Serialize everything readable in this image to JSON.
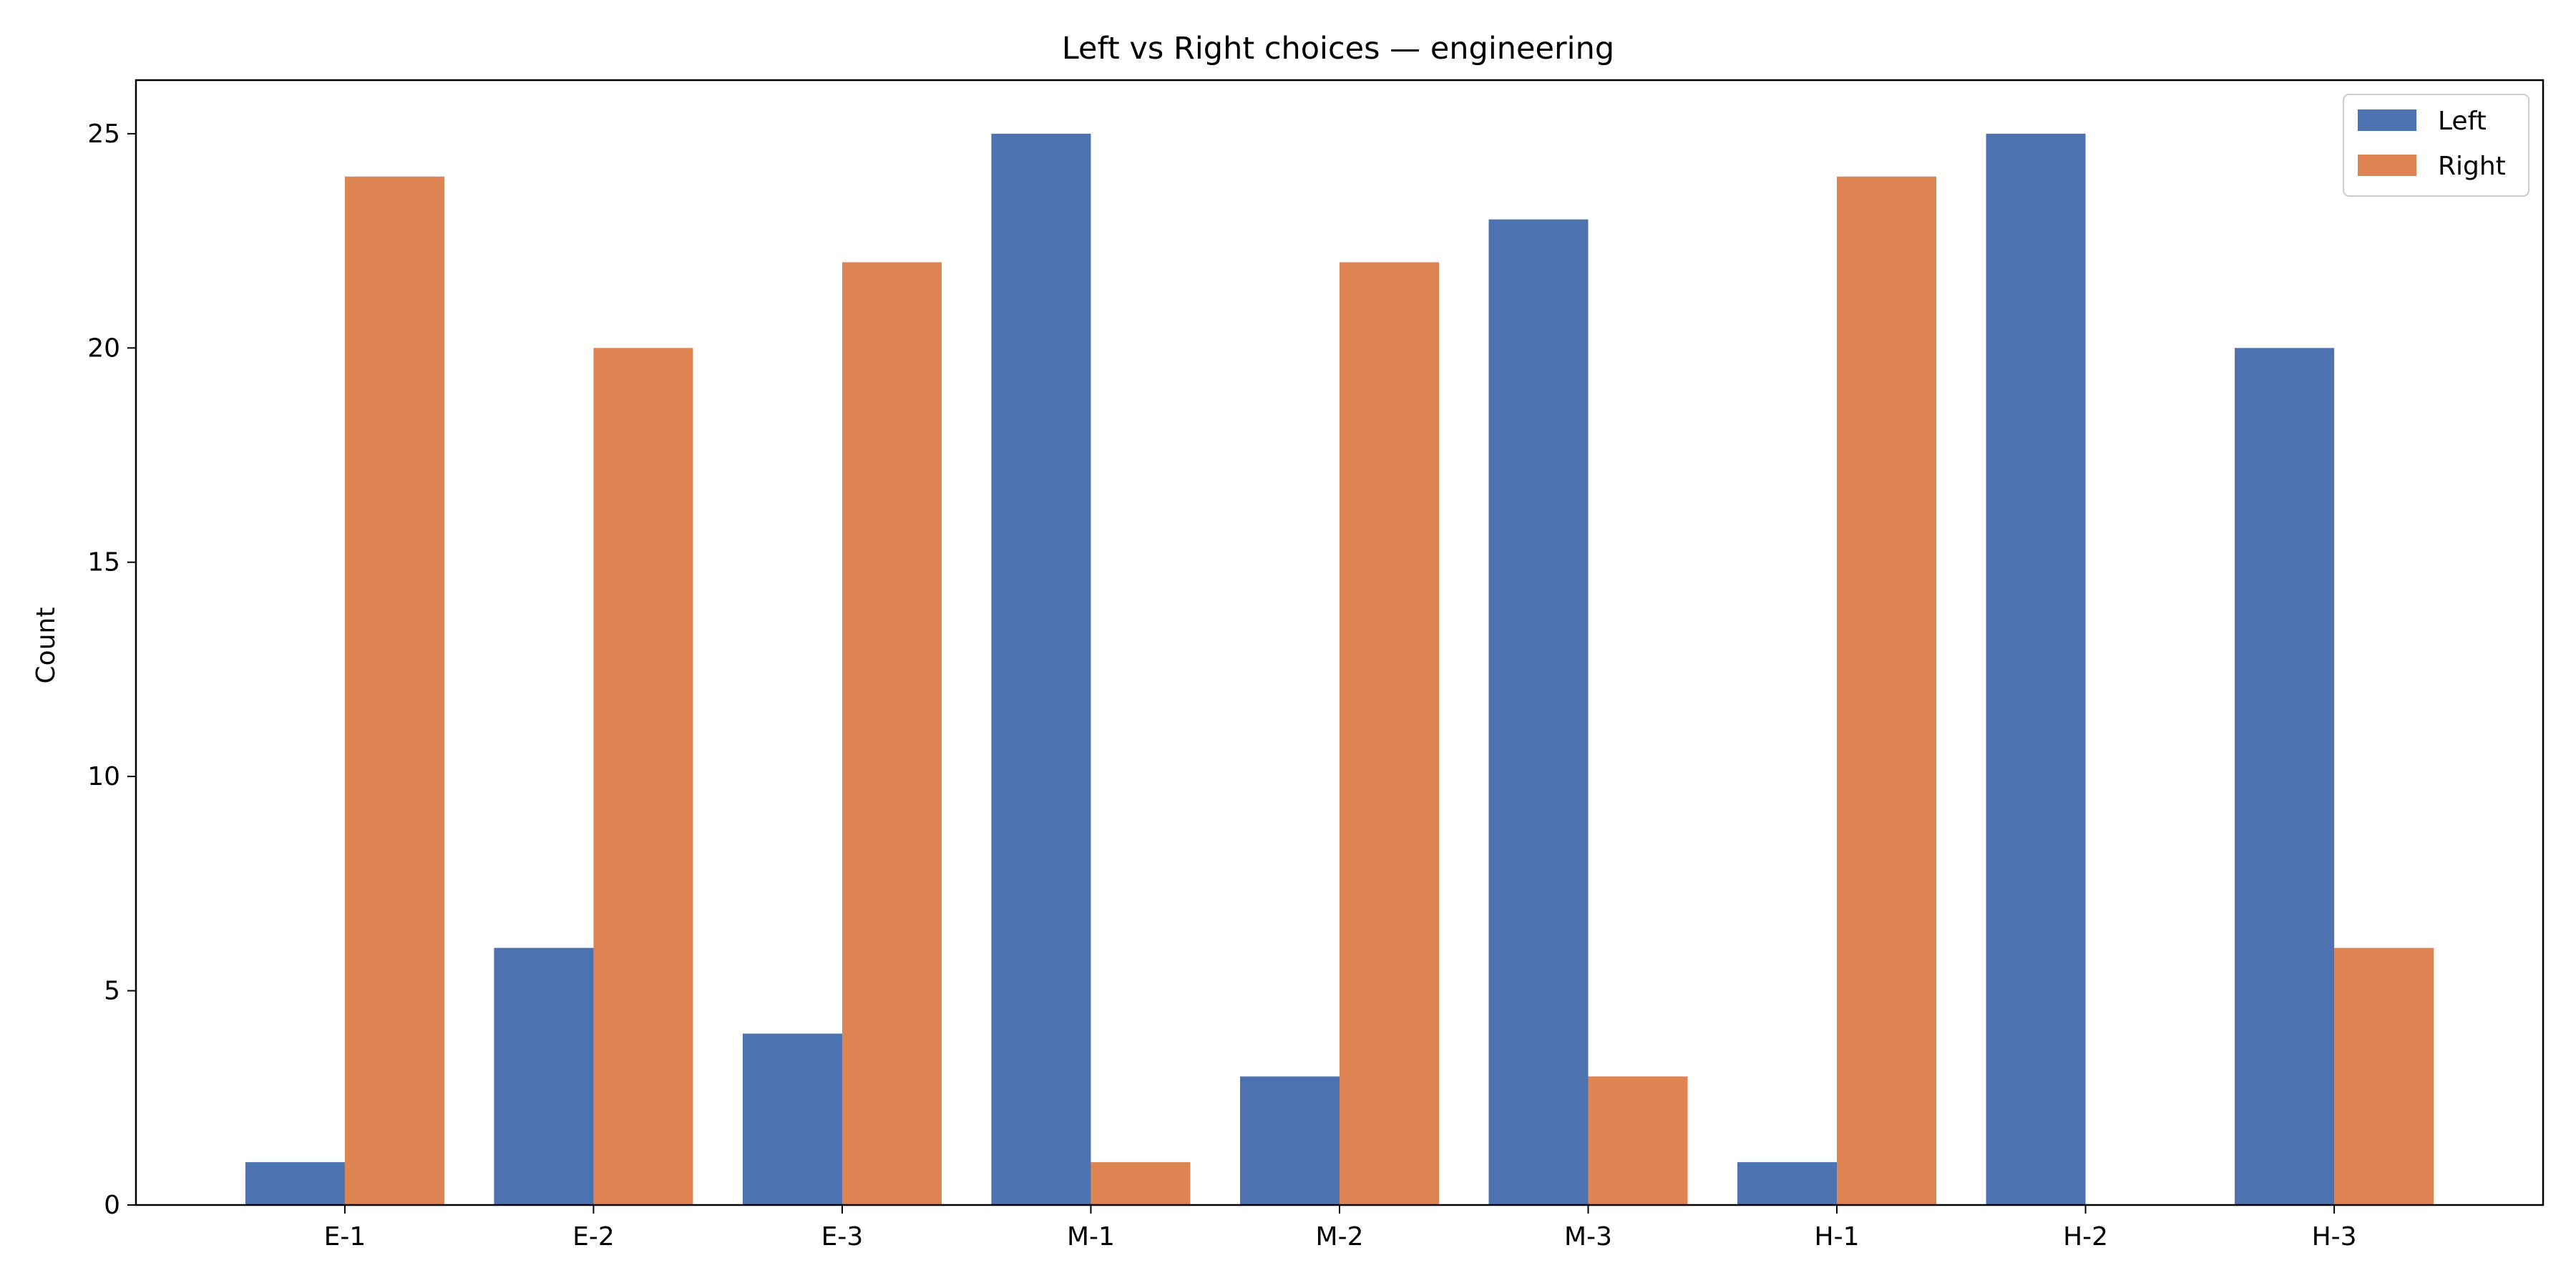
{
  "chart_data": {
    "type": "bar",
    "title": "Left vs Right choices — engineering",
    "xlabel": "",
    "ylabel": "Count",
    "categories": [
      "E-1",
      "E-2",
      "E-3",
      "M-1",
      "M-2",
      "M-3",
      "H-1",
      "H-2",
      "H-3"
    ],
    "series": [
      {
        "name": "Left",
        "color": "#4c72b0",
        "values": [
          1,
          6,
          4,
          25,
          3,
          23,
          1,
          25,
          20
        ]
      },
      {
        "name": "Right",
        "color": "#dd8452",
        "values": [
          24,
          20,
          22,
          1,
          22,
          3,
          24,
          0,
          6
        ]
      }
    ],
    "ylim": [
      0,
      26.25
    ],
    "yticks": [
      0,
      5,
      10,
      15,
      20,
      25
    ],
    "grid": false,
    "legend_position": "top-right"
  }
}
